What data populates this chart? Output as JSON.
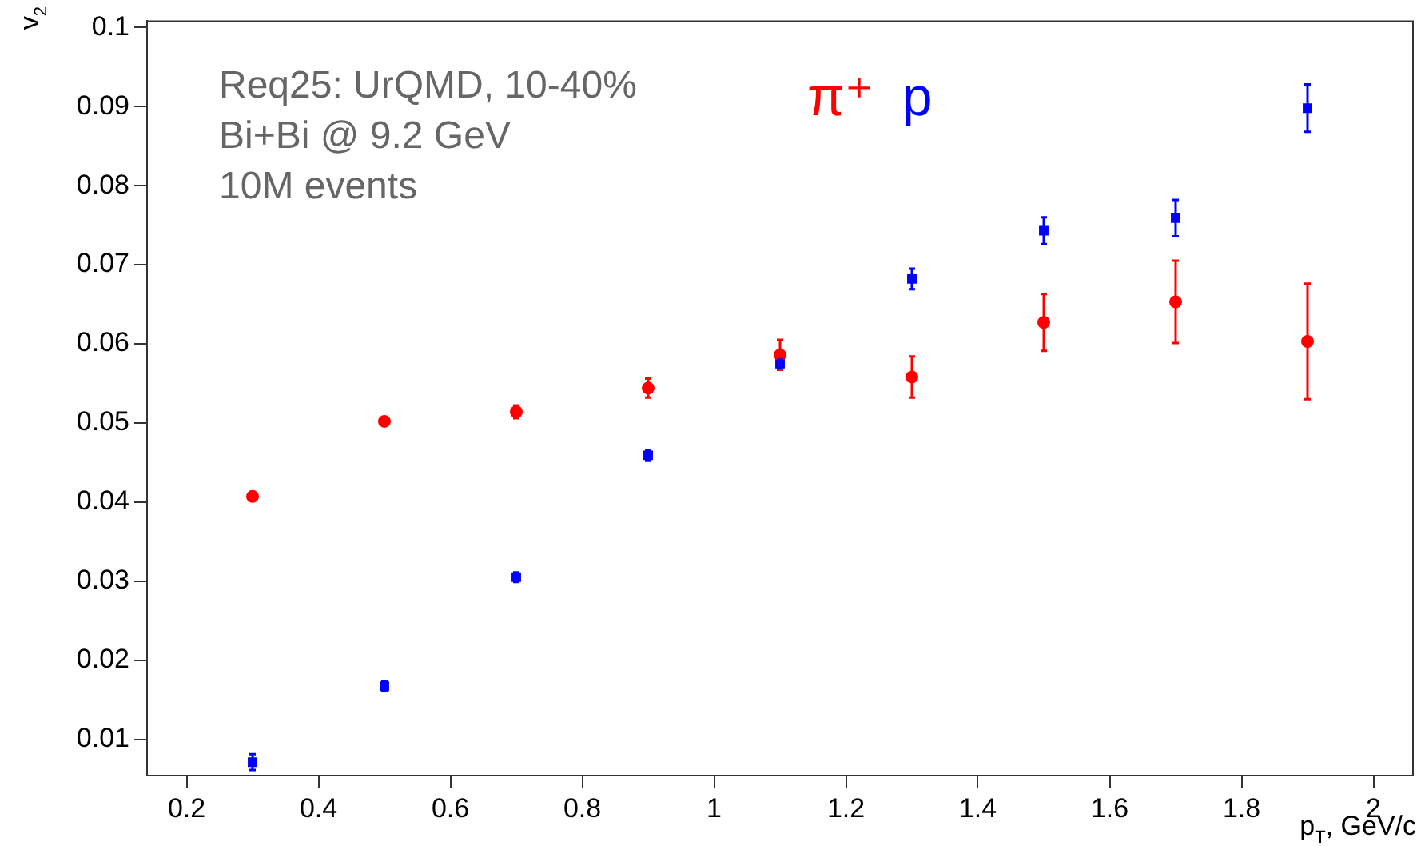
{
  "chart_data": {
    "type": "scatter",
    "xlabel": "p$_{T}$, GeV/c",
    "ylabel": "v$_{2}$",
    "annotations": [
      "Req25: UrQMD, 10-40%",
      "Bi+Bi @ 9.2 GeV",
      "10M events"
    ],
    "xlim": [
      0.14,
      2.06
    ],
    "ylim": [
      0.0054,
      0.1008
    ],
    "xticks": [
      0.2,
      0.4,
      0.6,
      0.8,
      1,
      1.2,
      1.4,
      1.6,
      1.8,
      2
    ],
    "yticks": [
      0.01,
      0.02,
      0.03,
      0.04,
      0.05,
      0.06,
      0.07,
      0.08,
      0.09,
      0.1
    ],
    "grid": false,
    "legend": "top",
    "series": [
      {
        "name": "π⁺",
        "color": "#ff0000",
        "marker": "circle",
        "x": [
          0.3,
          0.5,
          0.7,
          0.9,
          1.1,
          1.3,
          1.5,
          1.7,
          1.9
        ],
        "values": [
          0.0407,
          0.0502,
          0.0514,
          0.0544,
          0.0586,
          0.0558,
          0.0627,
          0.0653,
          0.0603
        ],
        "errors": [
          null,
          null,
          0.0008,
          0.0012,
          0.0019,
          0.0026,
          0.0036,
          0.0052,
          0.0073
        ]
      },
      {
        "name": "p",
        "color": "#0000ff",
        "marker": "square",
        "x": [
          0.3,
          0.5,
          0.7,
          0.9,
          1.1,
          1.3,
          1.5,
          1.7,
          1.9
        ],
        "values": [
          0.0071,
          0.0167,
          0.0305,
          0.0459,
          0.0575,
          0.0682,
          0.0743,
          0.0759,
          0.0898
        ],
        "errors": [
          0.001,
          0.0006,
          0.0006,
          0.0007,
          0.0005,
          0.0013,
          0.0017,
          0.0023,
          0.003
        ]
      }
    ]
  }
}
